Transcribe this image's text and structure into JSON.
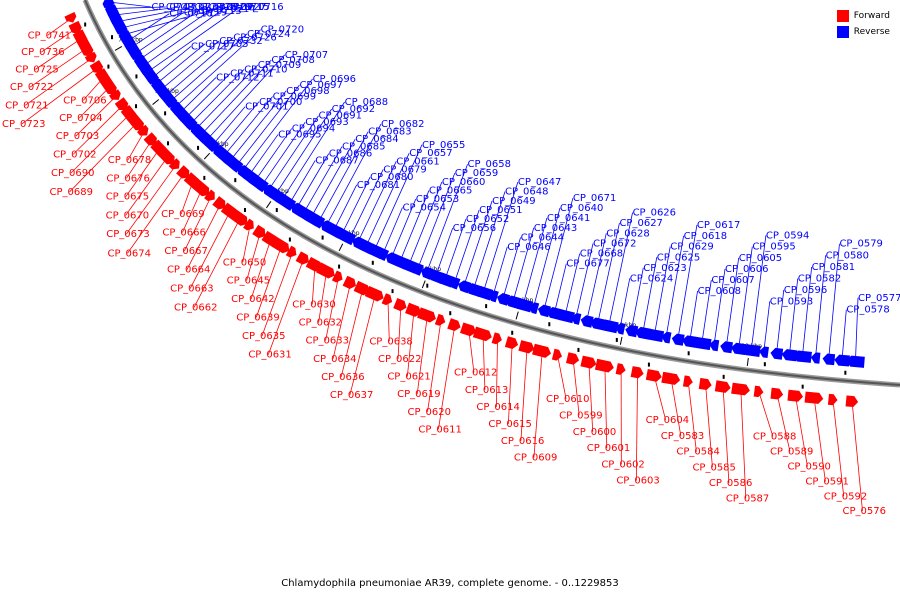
{
  "legend": [
    {
      "label": "Forward",
      "color": "#ff0000"
    },
    {
      "label": "Reverse",
      "color": "#0000ff"
    }
  ],
  "caption": "Chlamydophila pneumoniae AR39, complete genome. - 0..1229853",
  "ticks": [
    "780 kbp",
    "760 kbp",
    "740 kbp",
    "720 kbp",
    "700 kbp",
    "680 kbp",
    "660 kbp",
    "640 kbp",
    "620 kbp"
  ],
  "forward_labels": [
    "CP_0741",
    "CP_0736",
    "CP_0725",
    "CP_0722",
    "CP_0721",
    "CP_0723",
    "CP_0706",
    "CP_0704",
    "CP_0703",
    "CP_0702",
    "CP_0690",
    "CP_0689",
    "CP_0678",
    "CP_0676",
    "CP_0675",
    "CP_0670",
    "CP_0673",
    "CP_0674",
    "CP_0669",
    "CP_0666",
    "CP_0667",
    "CP_0664",
    "CP_0663",
    "CP_0662",
    "CP_0650",
    "CP_0645",
    "CP_0642",
    "CP_0639",
    "CP_0635",
    "CP_0631",
    "CP_0630",
    "CP_0632",
    "CP_0633",
    "CP_0634",
    "CP_0636",
    "CP_0637",
    "CP_0638",
    "CP_0622",
    "CP_0621",
    "CP_0619",
    "CP_0620",
    "CP_0611",
    "CP_0612",
    "CP_0613",
    "CP_0614",
    "CP_0615",
    "CP_0616",
    "CP_0609",
    "CP_0610",
    "CP_0599",
    "CP_0600",
    "CP_0601",
    "CP_0602",
    "CP_0603",
    "CP_0604",
    "CP_0583",
    "CP_0584",
    "CP_0585",
    "CP_0586",
    "CP_0587",
    "CP_0588",
    "CP_0589",
    "CP_0590",
    "CP_0591",
    "CP_0592",
    "CP_0576"
  ],
  "reverse_labels": [
    "CP_0743",
    "CP_0731",
    "CP_0733",
    "CP_0728",
    "CP_0729",
    "CP_0727",
    "CP_0718",
    "CP_0719",
    "CP_0713",
    "CP_0714",
    "CP_0715",
    "CP_0716",
    "CP_0717",
    "CP_0705",
    "CP_0732",
    "CP_0726",
    "CP_0724",
    "CP_0720",
    "CP_0712",
    "CP_0711",
    "CP_0710",
    "CP_0709",
    "CP_0708",
    "CP_0707",
    "CP_0701",
    "CP_0700",
    "CP_0699",
    "CP_0698",
    "CP_0697",
    "CP_0696",
    "CP_0695",
    "CP_0694",
    "CP_0693",
    "CP_0691",
    "CP_0692",
    "CP_0688",
    "CP_0687",
    "CP_0686",
    "CP_0685",
    "CP_0684",
    "CP_0683",
    "CP_0682",
    "CP_0681",
    "CP_0680",
    "CP_0679",
    "CP_0661",
    "CP_0657",
    "CP_0655",
    "CP_0654",
    "CP_0653",
    "CP_0665",
    "CP_0660",
    "CP_0659",
    "CP_0658",
    "CP_0656",
    "CP_0652",
    "CP_0651",
    "CP_0649",
    "CP_0648",
    "CP_0647",
    "CP_0646",
    "CP_0644",
    "CP_0643",
    "CP_0641",
    "CP_0640",
    "CP_0671",
    "CP_0677",
    "CP_0668",
    "CP_0672",
    "CP_0628",
    "CP_0627",
    "CP_0626",
    "CP_0624",
    "CP_0623",
    "CP_0625",
    "CP_0629",
    "CP_0618",
    "CP_0617",
    "CP_0608",
    "CP_0607",
    "CP_0606",
    "CP_0605",
    "CP_0595",
    "CP_0594",
    "CP_0593",
    "CP_0596",
    "CP_0582",
    "CP_0581",
    "CP_0580",
    "CP_0579",
    "CP_0578",
    "CP_0577"
  ]
}
